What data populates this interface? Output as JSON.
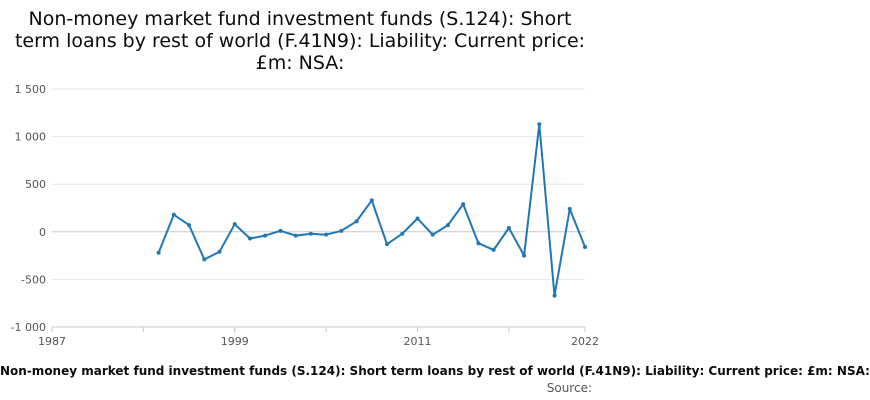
{
  "chart_data": {
    "type": "line",
    "title": "Non-money market fund investment funds (S.124): Short term loans by rest of world (F.41N9): Liability: Current price: £m: NSA:",
    "xlabel": "",
    "ylabel": "",
    "xlim": [
      1987,
      2022
    ],
    "ylim": [
      -1000,
      1500
    ],
    "grid": true,
    "x_ticks": [
      "1987",
      "1999",
      "2011",
      "2022"
    ],
    "y_ticks": [
      "1 500",
      "1 000",
      "500",
      "0",
      "-500",
      "-1 000"
    ],
    "series": [
      {
        "name": "Non-money market fund investment funds (S.124): Short term loans by rest of world (F.41N9): Liability: Current price: £m: NSA:",
        "color": "#1f77b4",
        "x": [
          1994,
          1995,
          1996,
          1997,
          1998,
          1999,
          2000,
          2001,
          2002,
          2003,
          2004,
          2005,
          2006,
          2007,
          2008,
          2009,
          2010,
          2011,
          2012,
          2013,
          2014,
          2015,
          2016,
          2017,
          2018,
          2019,
          2020,
          2021,
          2022
        ],
        "y": [
          -220,
          180,
          70,
          -290,
          -210,
          80,
          -70,
          -40,
          10,
          -40,
          -20,
          -30,
          10,
          110,
          330,
          -130,
          -20,
          140,
          -30,
          70,
          290,
          -120,
          -190,
          40,
          -250,
          1130,
          -670,
          240,
          -160
        ]
      }
    ]
  },
  "legend_text": "Non-money market fund investment funds (S.124): Short term loans by rest of world (F.41N9): Liability: Current price: £m: NSA:",
  "source_label": "Source:"
}
